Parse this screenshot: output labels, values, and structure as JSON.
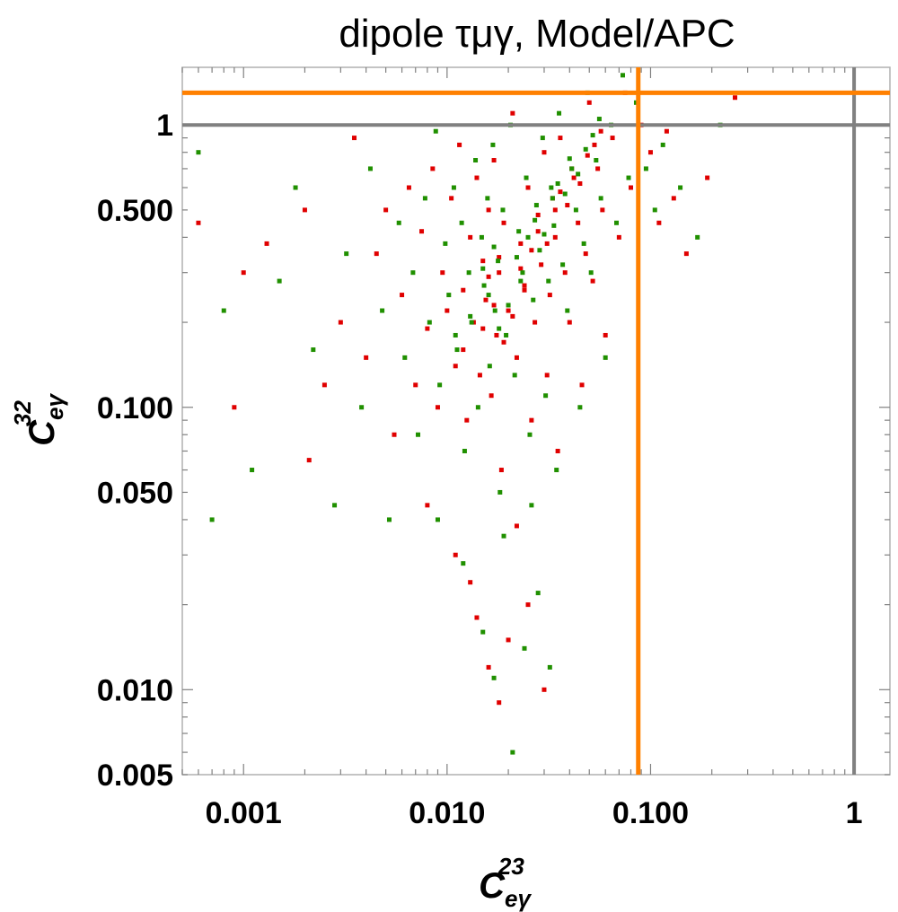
{
  "chart_data": {
    "type": "scatter",
    "title": "dipole τμγ, Model/APC",
    "xlabel": {
      "base": "C",
      "sup": "23",
      "sub": "eγ"
    },
    "ylabel": {
      "base": "C",
      "sup": "32",
      "sub": "eγ"
    },
    "x_scale": "log",
    "y_scale": "log",
    "xlim": [
      0.0005,
      1.5
    ],
    "ylim": [
      0.005,
      1.6
    ],
    "x_ticks": [
      {
        "value": 0.001,
        "label": "0.001"
      },
      {
        "value": 0.01,
        "label": "0.010"
      },
      {
        "value": 0.1,
        "label": "0.100"
      },
      {
        "value": 1,
        "label": "1"
      }
    ],
    "y_ticks": [
      {
        "value": 0.005,
        "label": "0.005"
      },
      {
        "value": 0.01,
        "label": "0.010"
      },
      {
        "value": 0.05,
        "label": "0.050"
      },
      {
        "value": 0.1,
        "label": "0.100"
      },
      {
        "value": 0.5,
        "label": "0.500"
      },
      {
        "value": 1,
        "label": "1"
      }
    ],
    "reference_lines": [
      {
        "orientation": "vertical",
        "value": 0.087,
        "color": "#ff8000"
      },
      {
        "orientation": "horizontal",
        "value": 1.3,
        "color": "#ff8000"
      },
      {
        "orientation": "vertical",
        "value": 1.0,
        "color": "#808080"
      },
      {
        "orientation": "horizontal",
        "value": 1.0,
        "color": "#808080"
      }
    ],
    "series": [
      {
        "color": "#e00000",
        "points": [
          [
            0.0006,
            0.45
          ],
          [
            0.0009,
            0.1
          ],
          [
            0.001,
            0.3
          ],
          [
            0.0013,
            0.38
          ],
          [
            0.002,
            0.5
          ],
          [
            0.0021,
            0.065
          ],
          [
            0.0025,
            0.12
          ],
          [
            0.003,
            0.2
          ],
          [
            0.0035,
            0.9
          ],
          [
            0.004,
            0.15
          ],
          [
            0.0045,
            0.35
          ],
          [
            0.005,
            0.5
          ],
          [
            0.0055,
            0.08
          ],
          [
            0.006,
            0.25
          ],
          [
            0.0065,
            0.6
          ],
          [
            0.007,
            0.12
          ],
          [
            0.0075,
            0.42
          ],
          [
            0.008,
            0.19
          ],
          [
            0.0085,
            0.7
          ],
          [
            0.009,
            0.1
          ],
          [
            0.0095,
            0.3
          ],
          [
            0.01,
            0.22
          ],
          [
            0.0105,
            0.55
          ],
          [
            0.011,
            0.14
          ],
          [
            0.0115,
            0.85
          ],
          [
            0.012,
            0.26
          ],
          [
            0.0125,
            0.09
          ],
          [
            0.013,
            0.4
          ],
          [
            0.0135,
            0.2
          ],
          [
            0.014,
            0.65
          ],
          [
            0.0145,
            0.13
          ],
          [
            0.015,
            0.33
          ],
          [
            0.0155,
            0.24
          ],
          [
            0.016,
            0.5
          ],
          [
            0.0165,
            0.11
          ],
          [
            0.017,
            0.75
          ],
          [
            0.0175,
            0.18
          ],
          [
            0.018,
            0.3
          ],
          [
            0.0185,
            0.06
          ],
          [
            0.019,
            0.45
          ],
          [
            0.02,
            0.22
          ],
          [
            0.021,
            1.1
          ],
          [
            0.022,
            0.15
          ],
          [
            0.023,
            0.38
          ],
          [
            0.024,
            0.27
          ],
          [
            0.025,
            0.6
          ],
          [
            0.026,
            0.09
          ],
          [
            0.027,
            0.2
          ],
          [
            0.028,
            0.48
          ],
          [
            0.029,
            0.32
          ],
          [
            0.03,
            0.8
          ],
          [
            0.031,
            0.13
          ],
          [
            0.032,
            0.25
          ],
          [
            0.033,
            0.55
          ],
          [
            0.034,
            0.4
          ],
          [
            0.035,
            0.07
          ],
          [
            0.036,
            0.9
          ],
          [
            0.038,
            0.3
          ],
          [
            0.04,
            0.2
          ],
          [
            0.042,
            0.65
          ],
          [
            0.044,
            0.45
          ],
          [
            0.046,
            0.12
          ],
          [
            0.048,
            0.35
          ],
          [
            0.05,
            1.2
          ],
          [
            0.052,
            0.28
          ],
          [
            0.055,
            0.7
          ],
          [
            0.058,
            0.5
          ],
          [
            0.06,
            0.18
          ],
          [
            0.065,
            0.9
          ],
          [
            0.07,
            0.4
          ],
          [
            0.075,
            1.3
          ],
          [
            0.08,
            0.6
          ],
          [
            0.09,
            1.0
          ],
          [
            0.1,
            0.8
          ],
          [
            0.11,
            0.45
          ],
          [
            0.12,
            0.95
          ],
          [
            0.13,
            0.55
          ],
          [
            0.15,
            0.35
          ],
          [
            0.19,
            0.65
          ],
          [
            0.26,
            1.25
          ],
          [
            0.008,
            0.045
          ],
          [
            0.011,
            0.03
          ],
          [
            0.014,
            0.018
          ],
          [
            0.016,
            0.012
          ],
          [
            0.018,
            0.009
          ],
          [
            0.013,
            0.024
          ],
          [
            0.02,
            0.015
          ],
          [
            0.025,
            0.02
          ],
          [
            0.03,
            0.01
          ],
          [
            0.022,
            0.038
          ],
          [
            0.012,
            0.16
          ],
          [
            0.015,
            0.19
          ],
          [
            0.017,
            0.23
          ],
          [
            0.019,
            0.17
          ],
          [
            0.021,
            0.21
          ],
          [
            0.024,
            0.26
          ],
          [
            0.016,
            0.29
          ],
          [
            0.018,
            0.34
          ],
          [
            0.023,
            0.31
          ],
          [
            0.026,
            0.36
          ],
          [
            0.028,
            0.42
          ],
          [
            0.031,
            0.38
          ],
          [
            0.034,
            0.5
          ],
          [
            0.036,
            0.58
          ],
          [
            0.039,
            0.52
          ],
          [
            0.041,
            0.7
          ],
          [
            0.045,
            0.62
          ],
          [
            0.049,
            0.78
          ],
          [
            0.053,
            0.85
          ],
          [
            0.057,
            0.95
          ]
        ]
      },
      {
        "color": "#209000",
        "points": [
          [
            0.0006,
            0.8
          ],
          [
            0.0007,
            0.04
          ],
          [
            0.0008,
            0.22
          ],
          [
            0.0011,
            0.06
          ],
          [
            0.0015,
            0.28
          ],
          [
            0.0018,
            0.6
          ],
          [
            0.0022,
            0.16
          ],
          [
            0.0028,
            0.045
          ],
          [
            0.0032,
            0.35
          ],
          [
            0.0038,
            0.1
          ],
          [
            0.0042,
            0.7
          ],
          [
            0.0048,
            0.22
          ],
          [
            0.0052,
            0.04
          ],
          [
            0.0058,
            0.45
          ],
          [
            0.0062,
            0.15
          ],
          [
            0.0068,
            0.3
          ],
          [
            0.0072,
            0.08
          ],
          [
            0.0078,
            0.55
          ],
          [
            0.0082,
            0.2
          ],
          [
            0.0088,
            0.95
          ],
          [
            0.0092,
            0.12
          ],
          [
            0.0098,
            0.38
          ],
          [
            0.0102,
            0.25
          ],
          [
            0.0108,
            0.6
          ],
          [
            0.0112,
            0.16
          ],
          [
            0.0118,
            0.45
          ],
          [
            0.0122,
            0.07
          ],
          [
            0.0128,
            0.3
          ],
          [
            0.0132,
            0.2
          ],
          [
            0.0138,
            0.75
          ],
          [
            0.0142,
            0.1
          ],
          [
            0.0148,
            0.4
          ],
          [
            0.0152,
            0.27
          ],
          [
            0.0158,
            0.55
          ],
          [
            0.0162,
            0.14
          ],
          [
            0.0168,
            0.85
          ],
          [
            0.0172,
            0.22
          ],
          [
            0.0178,
            0.33
          ],
          [
            0.0182,
            0.05
          ],
          [
            0.0188,
            0.5
          ],
          [
            0.0195,
            0.18
          ],
          [
            0.0205,
            1.0
          ],
          [
            0.0215,
            0.13
          ],
          [
            0.0225,
            0.42
          ],
          [
            0.0235,
            0.3
          ],
          [
            0.0245,
            0.65
          ],
          [
            0.0255,
            0.08
          ],
          [
            0.0265,
            0.24
          ],
          [
            0.0275,
            0.52
          ],
          [
            0.0285,
            0.36
          ],
          [
            0.0295,
            0.9
          ],
          [
            0.0305,
            0.11
          ],
          [
            0.0315,
            0.28
          ],
          [
            0.0325,
            0.6
          ],
          [
            0.0335,
            0.44
          ],
          [
            0.0345,
            0.06
          ],
          [
            0.0355,
            1.1
          ],
          [
            0.037,
            0.32
          ],
          [
            0.039,
            0.22
          ],
          [
            0.041,
            0.7
          ],
          [
            0.043,
            0.5
          ],
          [
            0.045,
            0.1
          ],
          [
            0.047,
            0.38
          ],
          [
            0.049,
            1.3
          ],
          [
            0.051,
            0.3
          ],
          [
            0.054,
            0.75
          ],
          [
            0.057,
            0.55
          ],
          [
            0.06,
            0.15
          ],
          [
            0.064,
            1.0
          ],
          [
            0.068,
            0.45
          ],
          [
            0.073,
            1.5
          ],
          [
            0.078,
            0.65
          ],
          [
            0.085,
            1.2
          ],
          [
            0.095,
            0.7
          ],
          [
            0.105,
            0.5
          ],
          [
            0.115,
            0.85
          ],
          [
            0.14,
            0.6
          ],
          [
            0.17,
            0.4
          ],
          [
            0.22,
            1.0
          ],
          [
            0.009,
            0.04
          ],
          [
            0.012,
            0.028
          ],
          [
            0.015,
            0.016
          ],
          [
            0.017,
            0.011
          ],
          [
            0.021,
            0.006
          ],
          [
            0.024,
            0.014
          ],
          [
            0.028,
            0.022
          ],
          [
            0.032,
            0.012
          ],
          [
            0.019,
            0.035
          ],
          [
            0.026,
            0.045
          ],
          [
            0.011,
            0.18
          ],
          [
            0.013,
            0.21
          ],
          [
            0.016,
            0.25
          ],
          [
            0.018,
            0.19
          ],
          [
            0.02,
            0.23
          ],
          [
            0.023,
            0.28
          ],
          [
            0.015,
            0.31
          ],
          [
            0.017,
            0.37
          ],
          [
            0.022,
            0.34
          ],
          [
            0.025,
            0.4
          ],
          [
            0.027,
            0.46
          ],
          [
            0.03,
            0.41
          ],
          [
            0.033,
            0.55
          ],
          [
            0.035,
            0.62
          ],
          [
            0.038,
            0.57
          ],
          [
            0.04,
            0.76
          ],
          [
            0.044,
            0.67
          ],
          [
            0.048,
            0.82
          ],
          [
            0.052,
            0.92
          ],
          [
            0.056,
            1.05
          ]
        ]
      }
    ]
  }
}
